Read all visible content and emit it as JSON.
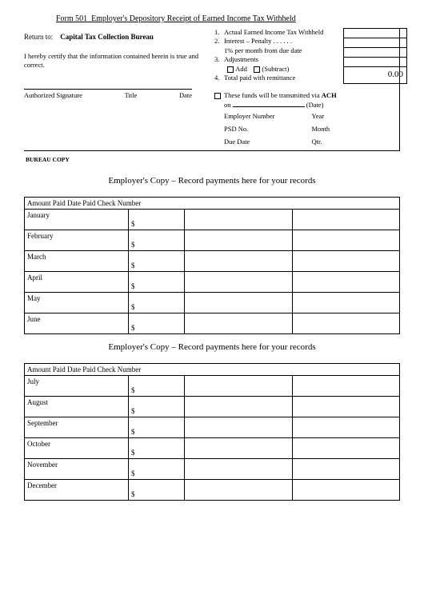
{
  "form": {
    "title_prefix": "Form 501",
    "title_rest": "Employer's Depository Receipt of Earned Income Tax Withheld",
    "return_to_label": "Return to:",
    "return_to_value": "Capital Tax Collection Bureau",
    "certification": "I hereby certify that the information contained herein is true and correct.",
    "sig_labels": {
      "signature": "Authorized Signature",
      "title": "Title",
      "date": "Date"
    },
    "bureau_copy": "BUREAU COPY"
  },
  "items": {
    "i1": "Actual Earned Income Tax Withheld",
    "i2a": "Interest – Penalty . . . . . .",
    "i2b": "1% per month from due date",
    "i3": "Adjustments",
    "i3_add": "Add",
    "i3_sub": "(Subtract)",
    "i4": "Total paid with remittance",
    "total_value": "0.00"
  },
  "ach": {
    "line1a": "These funds will be transmitted via ",
    "line1b": "ACH",
    "line2_on": "on",
    "line2_date": "(Date)",
    "emp_num": "Employer Number",
    "year": "Year",
    "psd": "PSD No.",
    "month": "Month",
    "due": "Due Date",
    "qtr": "Qtr."
  },
  "records": {
    "section_title": "Employer's Copy – Record payments here for your records",
    "header": "Amount Paid Date Paid Check Number",
    "dollar": "$",
    "months1": [
      "January",
      "February",
      "March",
      "April",
      "May",
      "June"
    ],
    "months2": [
      "July",
      "August",
      "September",
      "October",
      "November",
      "December"
    ]
  }
}
